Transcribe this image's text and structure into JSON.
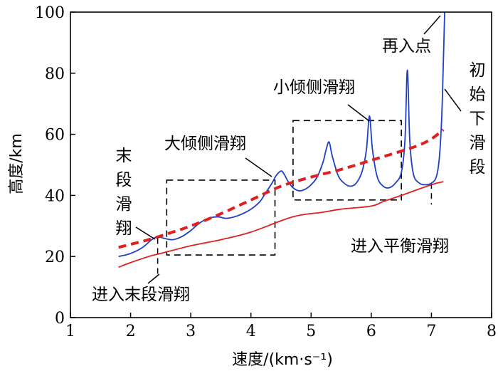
{
  "chart_data": {
    "type": "line",
    "xlabel": "速度/(km·s⁻¹)",
    "ylabel": "高度/km",
    "xlim": [
      1,
      8
    ],
    "ylim": [
      0,
      100
    ],
    "x_ticks": [
      "1",
      "2",
      "3",
      "4",
      "5",
      "6",
      "7",
      "8"
    ],
    "y_ticks": [
      "0",
      "20",
      "40",
      "60",
      "80",
      "100"
    ],
    "grid": false,
    "series": [
      {
        "color": "#1f3fc8",
        "style": "solid",
        "x": [
          1.8,
          2.0,
          2.2,
          2.35,
          2.45,
          2.55,
          2.7,
          2.85,
          3.0,
          3.15,
          3.3,
          3.45,
          3.6,
          3.8,
          4.0,
          4.15,
          4.25,
          4.35,
          4.42,
          4.5,
          4.55,
          4.62,
          4.7,
          4.8,
          4.9,
          5.0,
          5.1,
          5.2,
          5.25,
          5.3,
          5.35,
          5.45,
          5.55,
          5.65,
          5.75,
          5.85,
          5.92,
          5.97,
          6.02,
          6.1,
          6.2,
          6.3,
          6.4,
          6.5,
          6.56,
          6.6,
          6.64,
          6.7,
          6.8,
          6.9,
          7.0,
          7.08,
          7.13,
          7.17,
          7.2,
          7.22
        ],
        "y": [
          20,
          21,
          23,
          25.5,
          26.5,
          26,
          25.5,
          26.5,
          28.5,
          31,
          32.5,
          33,
          32.5,
          33.5,
          35.5,
          38,
          41,
          44,
          46.5,
          48,
          47,
          44.5,
          42.5,
          41.5,
          42,
          43.5,
          46,
          51,
          55,
          57.5,
          53,
          46.5,
          44,
          43,
          44,
          48,
          55,
          66,
          55,
          46,
          43,
          42.5,
          44,
          47.5,
          58,
          81,
          58,
          47,
          44,
          43.5,
          44,
          46,
          52,
          65,
          85,
          100
        ]
      },
      {
        "color": "#e02020",
        "style": "dashed",
        "x": [
          1.8,
          2.0,
          2.3,
          2.7,
          3.0,
          3.5,
          4.0,
          4.5,
          5.0,
          5.5,
          6.0,
          6.5,
          6.8,
          7.0,
          7.2
        ],
        "y": [
          23,
          24,
          25.5,
          28,
          30,
          34,
          38.5,
          43,
          46,
          48.5,
          51.5,
          54.5,
          56.5,
          58.5,
          61.5
        ]
      },
      {
        "color": "#e02020",
        "style": "solid",
        "x": [
          1.8,
          2.0,
          2.3,
          2.5,
          3.0,
          3.5,
          4.0,
          4.7,
          5.2,
          5.5,
          6.0,
          6.2,
          6.5,
          7.0,
          7.2
        ],
        "y": [
          16.5,
          18,
          20,
          21,
          23.5,
          25.5,
          28,
          33,
          34.5,
          35.5,
          36.5,
          38,
          40,
          43.5,
          44.5
        ]
      }
    ],
    "boxes": [
      {
        "x": [
          2.6,
          4.4
        ],
        "y": [
          20.5,
          45
        ]
      },
      {
        "x": [
          4.7,
          6.5
        ],
        "y": [
          38.5,
          64.5
        ]
      }
    ],
    "markers": [
      {
        "x": 2.45,
        "y": [
          26,
          14
        ]
      },
      {
        "x": 7.0,
        "y": [
          44,
          37
        ]
      }
    ],
    "annotations": [
      {
        "text": "再入点",
        "at": [
          7.2,
          100
        ]
      },
      {
        "text": "初始下滑段",
        "at": [
          7.25,
          78
        ]
      },
      {
        "text": "小倾侧滑翔",
        "at": [
          5.9,
          61.5
        ]
      },
      {
        "text": "大倾侧滑翔",
        "at": [
          4.0,
          44
        ]
      },
      {
        "text": "末段滑翔",
        "at": [
          2.45,
          26.5
        ]
      },
      {
        "text": "进入末段滑翔",
        "at": [
          2.45,
          14
        ]
      },
      {
        "text": "进入平衡滑翔",
        "at": [
          7.0,
          37
        ]
      }
    ]
  }
}
